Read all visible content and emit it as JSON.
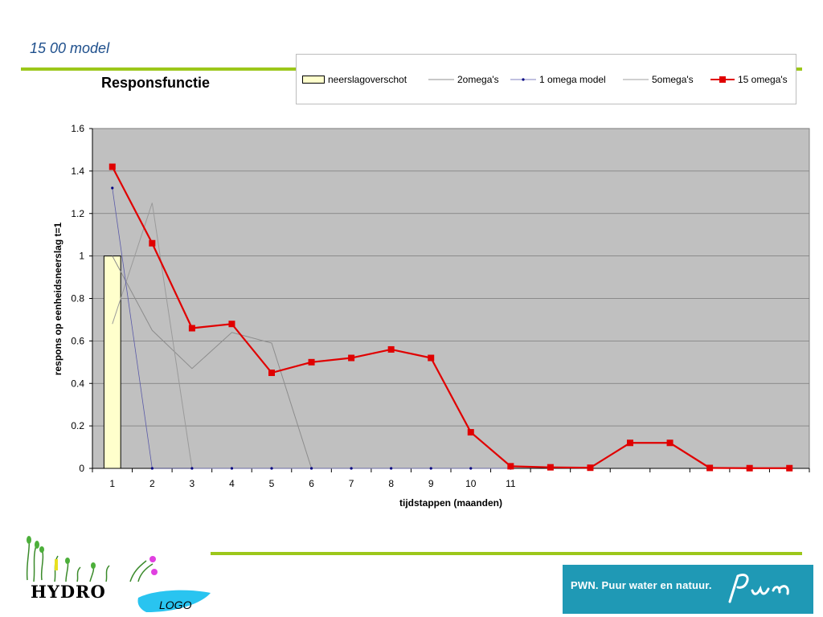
{
  "slide": {
    "title": "15 00 model"
  },
  "logos": {
    "hydro_text": "HYDRO",
    "hydro_sub": "LOGO",
    "pwn_text": "PWN. Puur water en natuur."
  },
  "colors": {
    "accent_green": "#9cc71a",
    "title_blue": "#1e4f8c",
    "plot_bg": "#c0c0c0",
    "series_red": "#e00000",
    "series_blue": "#000080",
    "bar_fill": "#ffffcc",
    "pwn_teal": "#1f99b5"
  },
  "chart_data": {
    "type": "bar",
    "title": "Responsfunctie",
    "xlabel": "tijdstappen (maanden)",
    "ylabel": "respons op eenheidsneerslag t=1",
    "ylim": [
      0,
      1.6
    ],
    "yticks": [
      "0",
      "0.2",
      "0.4",
      "0.6",
      "0.8",
      "1",
      "1.2",
      "1.4",
      "1.6"
    ],
    "categories": [
      "1",
      "2",
      "3",
      "4",
      "5",
      "6",
      "7",
      "8",
      "9",
      "10",
      "11",
      "",
      "",
      "",
      "",
      "",
      "",
      ""
    ],
    "grid": true,
    "legend_position": "top-right",
    "series": [
      {
        "name": "neerslagoverschot",
        "kind": "bar",
        "values": [
          1,
          0,
          0,
          0,
          0,
          0,
          0,
          0,
          0,
          0,
          0,
          null,
          null,
          null,
          null,
          null,
          null,
          null
        ]
      },
      {
        "name": "2omega's",
        "kind": "line",
        "values": [
          0.68,
          1.25,
          0,
          0,
          0,
          0,
          0,
          0,
          0,
          0,
          0,
          null,
          null,
          null,
          null,
          null,
          null,
          null
        ]
      },
      {
        "name": "1 omega model",
        "kind": "line",
        "marker": "dot",
        "values": [
          1.32,
          0,
          0,
          0,
          0,
          0,
          0,
          0,
          0,
          0,
          0,
          null,
          null,
          null,
          null,
          null,
          null,
          null
        ]
      },
      {
        "name": "5omega's",
        "kind": "line",
        "values": [
          1.0,
          0.65,
          0.47,
          0.64,
          0.59,
          0,
          0,
          0,
          0,
          0,
          0,
          null,
          null,
          null,
          null,
          null,
          null,
          null
        ]
      },
      {
        "name": "15 omega's",
        "kind": "line",
        "marker": "square",
        "values": [
          1.42,
          1.06,
          0.66,
          0.68,
          0.45,
          0.5,
          0.52,
          0.56,
          0.52,
          0.17,
          0.01,
          0.005,
          0.003,
          0.12,
          0.12,
          0.002,
          0.001,
          0.001
        ]
      }
    ]
  }
}
